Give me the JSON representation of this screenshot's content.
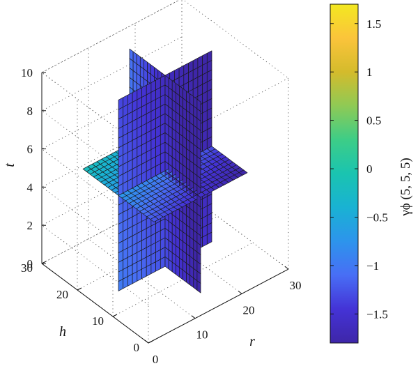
{
  "chart_data": {
    "type": "surface3d",
    "title": "",
    "xlabel": "r",
    "ylabel": "h",
    "zlabel": "t",
    "xlim": [
      0,
      30
    ],
    "ylim": [
      0,
      30
    ],
    "zlim": [
      0,
      10
    ],
    "x_ticks": [
      "0",
      "10",
      "20",
      "30"
    ],
    "y_ticks": [
      "0",
      "10",
      "20",
      "30"
    ],
    "z_ticks": [
      "0",
      "2",
      "4",
      "6",
      "8",
      "10"
    ],
    "slices": [
      {
        "name": "plane h = 15",
        "orientation": "constant-h",
        "value": 15,
        "span_r": [
          5,
          25
        ],
        "span_t": [
          0,
          10
        ]
      },
      {
        "name": "plane r = 15",
        "orientation": "constant-r",
        "value": 15,
        "span_h": [
          5,
          25
        ],
        "span_t": [
          0,
          10
        ]
      },
      {
        "name": "plane t = 5",
        "orientation": "constant-t",
        "value": 5,
        "span_r": [
          5,
          25
        ],
        "span_h": [
          5,
          25
        ]
      }
    ],
    "colorbar": {
      "label": "γϕ (5, 5, 5)",
      "min": -1.8,
      "max": 1.7,
      "ticks": [
        "1.5",
        "1",
        "0.5",
        "0",
        "−0.5",
        "−1",
        "−1.5"
      ],
      "colormap": "parula",
      "colors": [
        "#3e26a8",
        "#4433d6",
        "#486ef5",
        "#2d94ec",
        "#19b2d3",
        "#1ac4b0",
        "#3dcd87",
        "#8fca55",
        "#d4bb2c",
        "#fbc43b",
        "#f3e820"
      ]
    },
    "grid": true,
    "box": true
  }
}
